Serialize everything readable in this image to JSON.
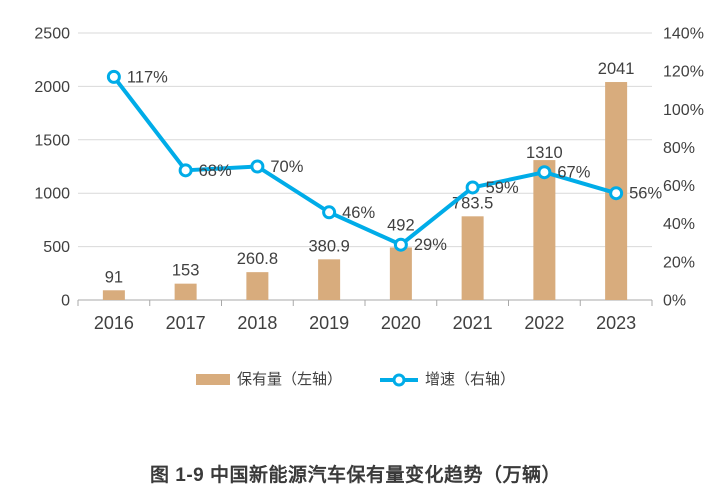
{
  "figure_title": "图 1-9 中国新能源汽车保有量变化趋势（万辆）",
  "legend": {
    "bars": "保有量（左轴）",
    "line": "增速（右轴）"
  },
  "colors": {
    "bar": "#D8AC7D",
    "line": "#00ACE8",
    "marker_fill": "#FFFFFF",
    "grid": "#D9D9D9",
    "axis": "#A8A8A8",
    "text": "#404040",
    "title_text": "#3A3A3A"
  },
  "chart_data": {
    "type": "bar+line combo",
    "title": "图 1-9 中国新能源汽车保有量变化趋势（万辆）",
    "categories": [
      "2016",
      "2017",
      "2018",
      "2019",
      "2020",
      "2021",
      "2022",
      "2023"
    ],
    "series": [
      {
        "name": "保有量（左轴）",
        "type": "bar",
        "axis": "left",
        "values": [
          91,
          153,
          260.8,
          380.9,
          492,
          783.5,
          1310,
          2041
        ],
        "labels": [
          "91",
          "153",
          "260.8",
          "380.9",
          "492",
          "783.5",
          "1310",
          "2041"
        ]
      },
      {
        "name": "增速（右轴）",
        "type": "line",
        "axis": "right",
        "values": [
          117,
          68,
          70,
          46,
          29,
          59,
          67,
          56
        ],
        "labels": [
          "117%",
          "68%",
          "70%",
          "46%",
          "29%",
          "59%",
          "67%",
          "56%"
        ]
      }
    ],
    "left_axis": {
      "min": 0,
      "max": 2500,
      "step": 500,
      "ticks": [
        "0",
        "500",
        "1000",
        "1500",
        "2000",
        "2500"
      ]
    },
    "right_axis": {
      "min": 0,
      "max": 140,
      "step": 20,
      "ticks": [
        "0%",
        "20%",
        "40%",
        "60%",
        "80%",
        "100%",
        "120%",
        "140%"
      ]
    },
    "grid": "horizontal gridlines at left-axis ticks",
    "legend_position": "bottom"
  }
}
